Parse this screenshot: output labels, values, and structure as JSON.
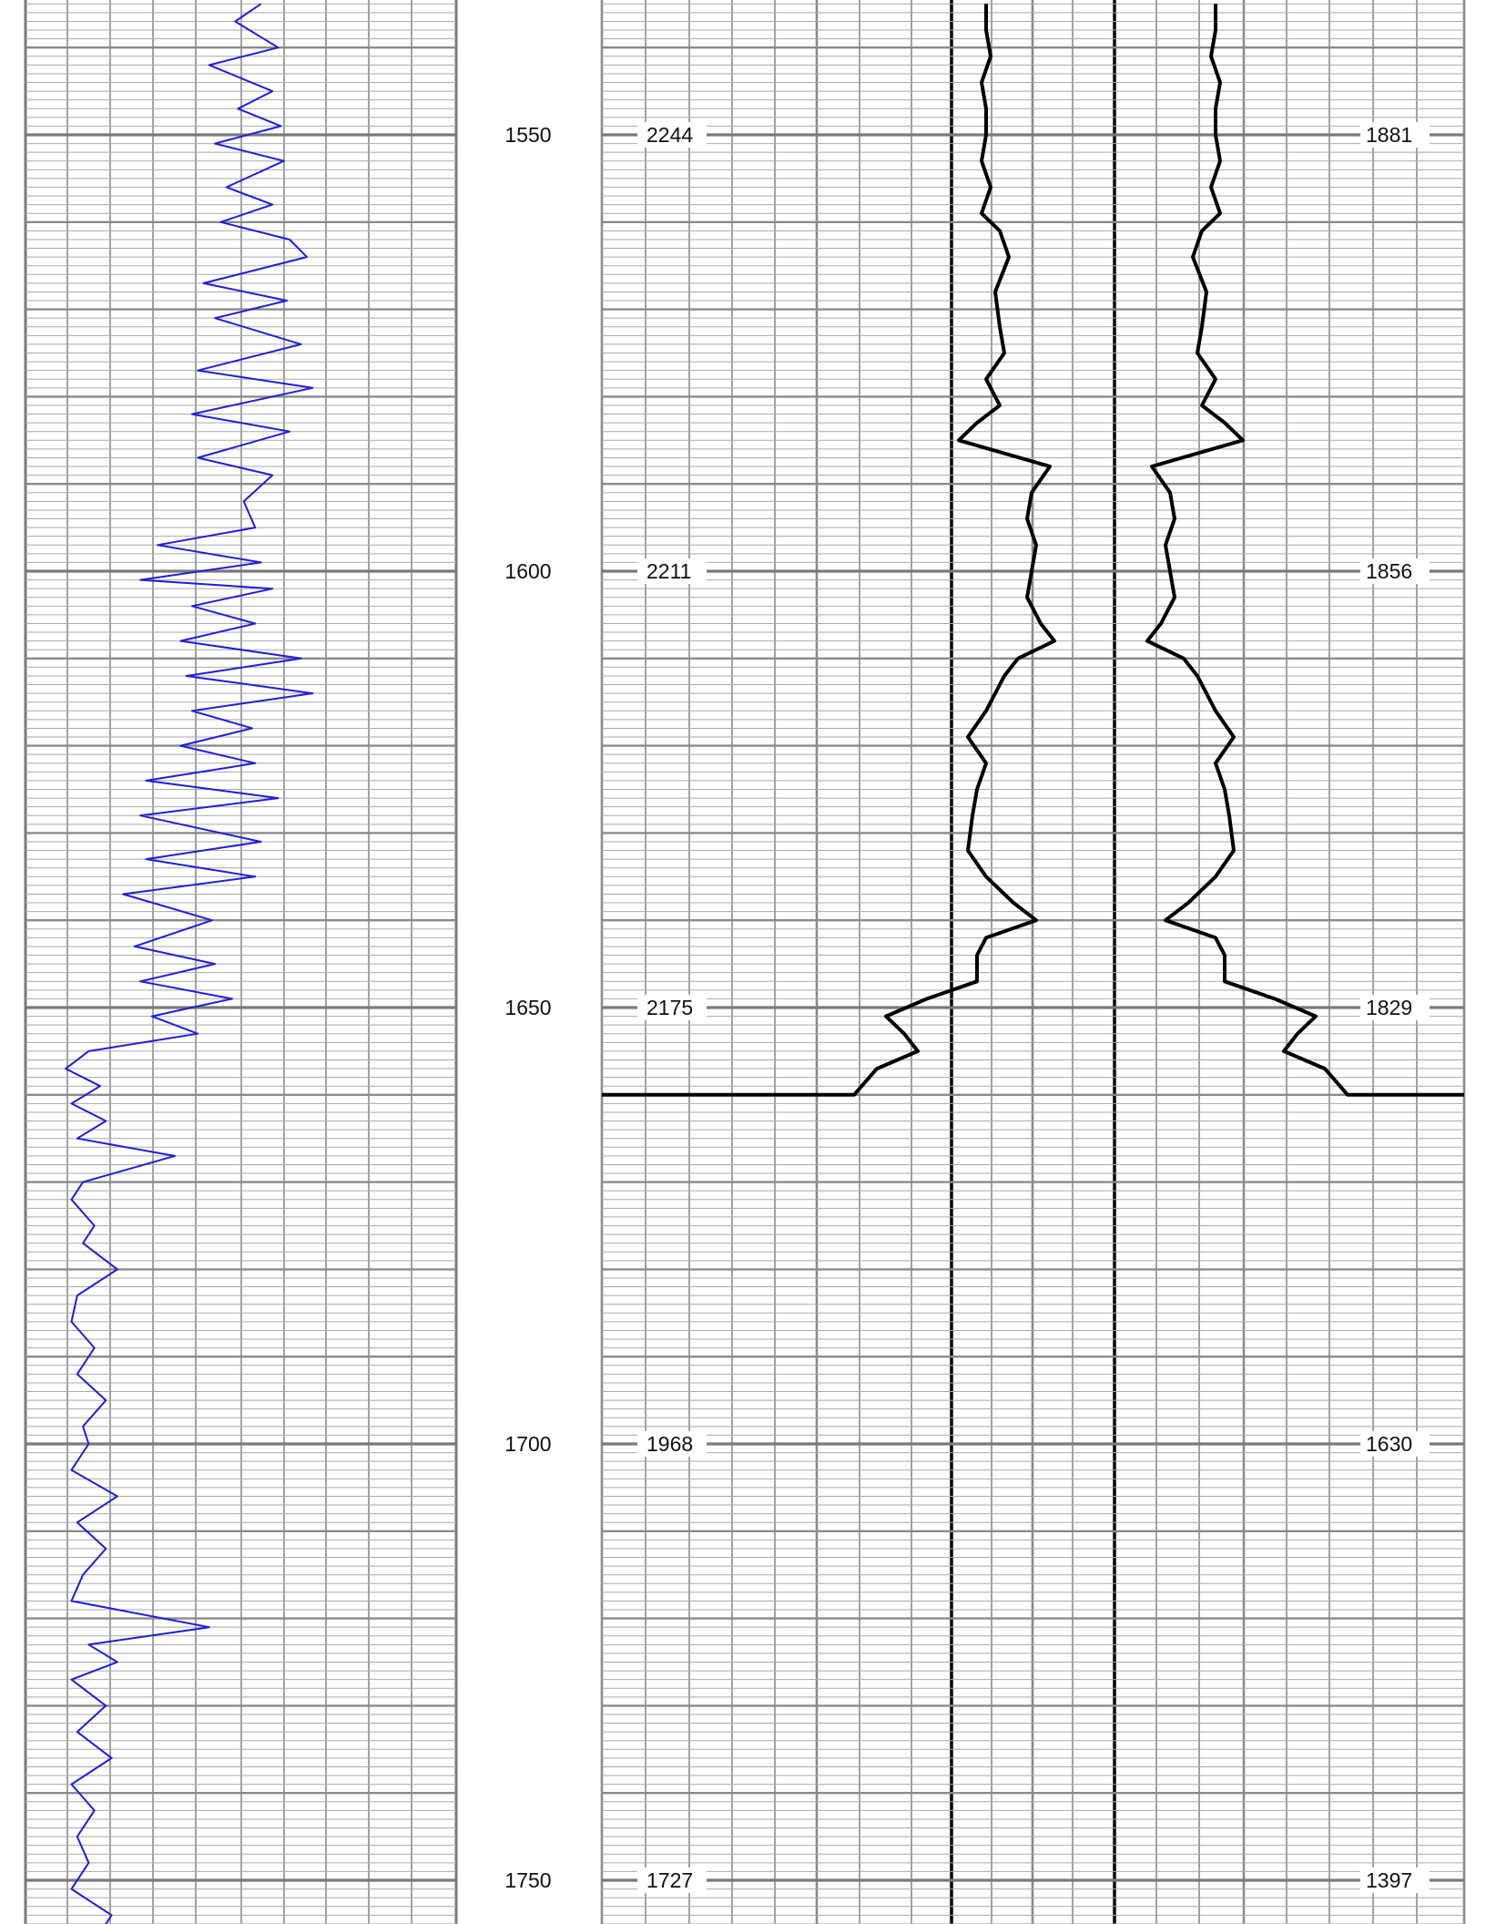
{
  "chart_data": {
    "type": "line",
    "title": "",
    "depth_axis": {
      "range": [
        1535,
        1755
      ],
      "major_step": 50,
      "tick_labels": [
        "1550",
        "1600",
        "1650",
        "1700",
        "1750"
      ]
    },
    "mid_values": {
      "depths": [
        1550,
        1600,
        1650,
        1700,
        1750
      ],
      "left_track": [
        "2244",
        "2211",
        "2175",
        "1968",
        "1727"
      ],
      "right_track": [
        "1881",
        "1856",
        "1829",
        "1630",
        "1397"
      ]
    },
    "gamma_curve": {
      "color": "#1f1fd6",
      "x_range": [
        0,
        150
      ],
      "depths": [
        1535,
        1537,
        1540,
        1542,
        1545,
        1547,
        1549,
        1551,
        1553,
        1556,
        1558,
        1560,
        1562,
        1564,
        1567,
        1569,
        1571,
        1574,
        1577,
        1579,
        1582,
        1584,
        1587,
        1589,
        1592,
        1595,
        1597,
        1599,
        1601,
        1602,
        1604,
        1606,
        1608,
        1610,
        1612,
        1614,
        1616,
        1618,
        1620,
        1622,
        1624,
        1626,
        1628,
        1631,
        1633,
        1635,
        1637,
        1640,
        1643,
        1645,
        1647,
        1649,
        1651,
        1653,
        1655,
        1657,
        1659,
        1661,
        1663,
        1665,
        1667,
        1670,
        1672,
        1675,
        1677,
        1680,
        1683,
        1686,
        1689,
        1692,
        1695,
        1698,
        1700,
        1703,
        1706,
        1709,
        1712,
        1715,
        1718,
        1721,
        1723,
        1725,
        1727,
        1730,
        1733,
        1736,
        1739,
        1742,
        1745,
        1748,
        1751,
        1754
      ],
      "values": [
        82,
        73,
        88,
        64,
        86,
        74,
        89,
        66,
        90,
        70,
        86,
        68,
        92,
        98,
        62,
        91,
        66,
        96,
        60,
        100,
        58,
        92,
        60,
        86,
        76,
        80,
        46,
        82,
        40,
        86,
        58,
        80,
        54,
        96,
        56,
        100,
        58,
        79,
        54,
        80,
        42,
        88,
        40,
        82,
        42,
        80,
        34,
        65,
        38,
        66,
        40,
        72,
        44,
        60,
        22,
        14,
        26,
        16,
        28,
        18,
        52,
        20,
        16,
        24,
        20,
        32,
        18,
        16,
        24,
        18,
        28,
        20,
        22,
        16,
        32,
        18,
        28,
        20,
        16,
        64,
        22,
        32,
        16,
        28,
        18,
        30,
        16,
        24,
        18,
        22,
        16,
        30
      ],
      "depth_end": 1755,
      "value_end": 28
    },
    "right_curve": {
      "color": "#000000",
      "x_range": [
        0,
        100
      ],
      "depths": [
        1535,
        1538,
        1541,
        1544,
        1547,
        1550,
        1553,
        1556,
        1559,
        1561,
        1564,
        1568,
        1572,
        1575,
        1578,
        1581,
        1583,
        1585,
        1588,
        1591,
        1594,
        1597,
        1600,
        1603,
        1606,
        1608,
        1610,
        1612,
        1614,
        1616,
        1619,
        1622,
        1625,
        1628,
        1632,
        1635,
        1638,
        1640,
        1642,
        1644,
        1647,
        1649,
        1651,
        1653,
        1655,
        1657
      ],
      "values": [
        24,
        24,
        25,
        23,
        24,
        24,
        23,
        25,
        23,
        27,
        29,
        26,
        27,
        28,
        24,
        27,
        22,
        18,
        38,
        34,
        33,
        35,
        34,
        33,
        36,
        39,
        31,
        28,
        26,
        24,
        20,
        24,
        22,
        21,
        20,
        24,
        30,
        35,
        24,
        22,
        22,
        11,
        2,
        6,
        9,
        0
      ],
      "depth_end": 1657,
      "value_end": 0
    },
    "mirror_axis_x": 1209
  }
}
